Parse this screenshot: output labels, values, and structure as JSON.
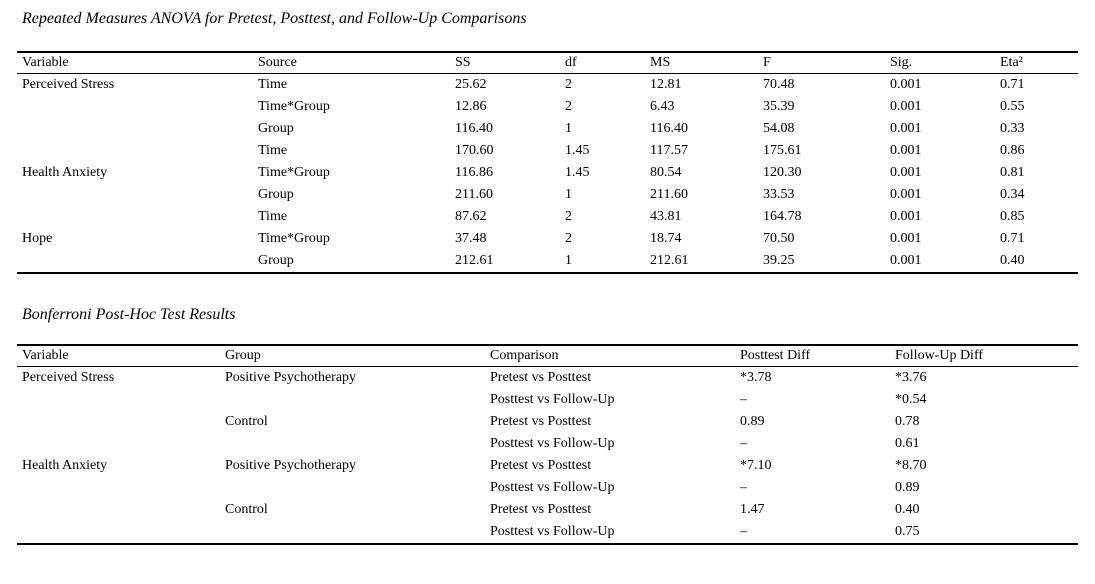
{
  "document": {
    "background_color": "#ffffff",
    "text_color": "#000000",
    "kind": "academic-paper-tables"
  },
  "anova_table": {
    "title": "Repeated Measures ANOVA for Pretest, Posttest, and Follow-Up Comparisons",
    "columns": [
      "Variable",
      "Source",
      "SS",
      "df",
      "MS",
      "F",
      "Sig.",
      "Eta²"
    ],
    "rows": [
      [
        "Perceived Stress",
        "Time",
        "25.62",
        "2",
        "12.81",
        "70.48",
        "0.001",
        "0.71"
      ],
      [
        "",
        "Time*Group",
        "12.86",
        "2",
        "6.43",
        "35.39",
        "0.001",
        "0.55"
      ],
      [
        "",
        "Group",
        "116.40",
        "1",
        "116.40",
        "54.08",
        "0.001",
        "0.33"
      ],
      [
        "",
        "Time",
        "170.60",
        "1.45",
        "117.57",
        "175.61",
        "0.001",
        "0.86"
      ],
      [
        "Health Anxiety",
        "Time*Group",
        "116.86",
        "1.45",
        "80.54",
        "120.30",
        "0.001",
        "0.81"
      ],
      [
        "",
        "Group",
        "211.60",
        "1",
        "211.60",
        "33.53",
        "0.001",
        "0.34"
      ],
      [
        "",
        "Time",
        "87.62",
        "2",
        "43.81",
        "164.78",
        "0.001",
        "0.85"
      ],
      [
        "Hope",
        "Time*Group",
        "37.48",
        "2",
        "18.74",
        "70.50",
        "0.001",
        "0.71"
      ],
      [
        "",
        "Group",
        "212.61",
        "1",
        "212.61",
        "39.25",
        "0.001",
        "0.40"
      ]
    ]
  },
  "posthoc_table": {
    "title": "Bonferroni Post-Hoc Test Results",
    "columns": [
      "Variable",
      "Group",
      "Comparison",
      "Posttest Diff",
      "Follow-Up Diff"
    ],
    "rows": [
      [
        "Perceived Stress",
        "Positive Psychotherapy",
        "Pretest vs Posttest",
        "*3.78",
        "*3.76"
      ],
      [
        "",
        "",
        "Posttest vs Follow-Up",
        "–",
        "*0.54"
      ],
      [
        "",
        "Control",
        "Pretest vs Posttest",
        "0.89",
        "0.78"
      ],
      [
        "",
        "",
        "Posttest vs Follow-Up",
        "–",
        "0.61"
      ],
      [
        "Health Anxiety",
        "Positive Psychotherapy",
        "Pretest vs Posttest",
        "*7.10",
        "*8.70"
      ],
      [
        "",
        "",
        "Posttest vs Follow-Up",
        "–",
        "0.89"
      ],
      [
        "",
        "Control",
        "Pretest vs Posttest",
        "1.47",
        "0.40"
      ],
      [
        "",
        "",
        "Posttest vs Follow-Up",
        "–",
        "0.75"
      ]
    ]
  }
}
